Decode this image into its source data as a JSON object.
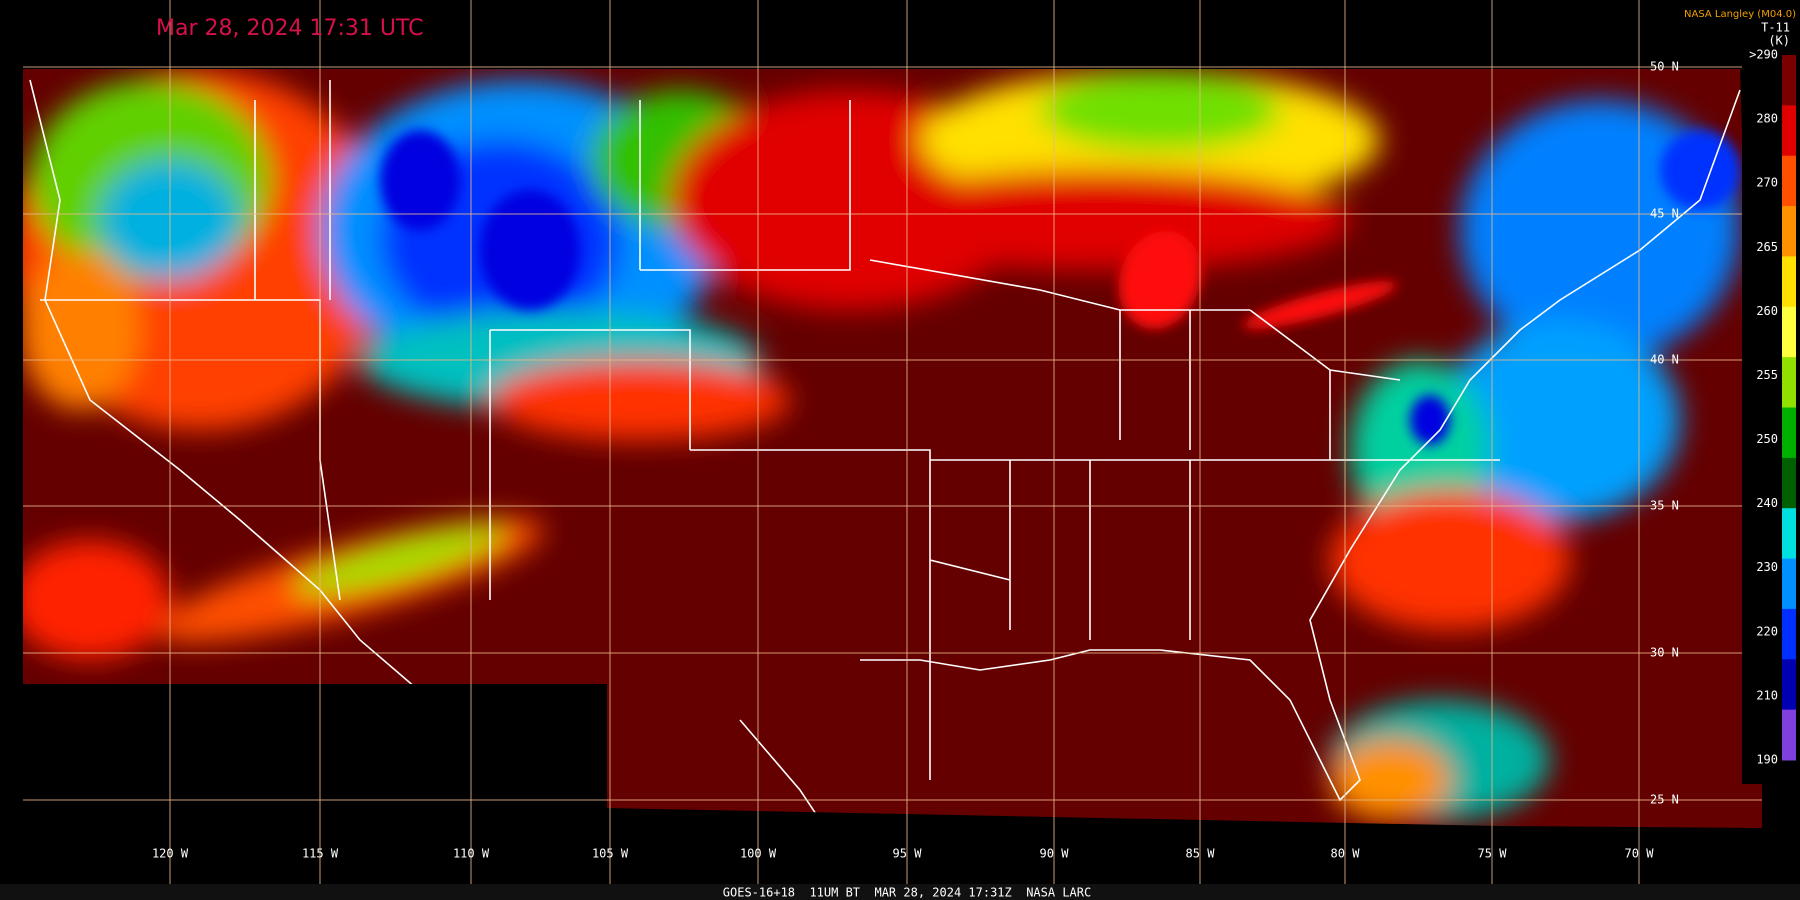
{
  "header": {
    "title": "Mar 28, 2024 17:31 UTC",
    "credit": "NASA Langley (M04.0)"
  },
  "legend": {
    "name": "T-11",
    "unit": "(K)",
    "ticks": [
      ">290",
      "280",
      "270",
      "265",
      "260",
      "255",
      "250",
      "240",
      "230",
      "220",
      "210",
      "190"
    ],
    "colors": [
      "#7a0000",
      "#e00000",
      "#ff5000",
      "#ff9000",
      "#ffe000",
      "#ffff40",
      "#90e000",
      "#00b000",
      "#006000",
      "#00e0e0",
      "#0090ff",
      "#0030ff",
      "#0000b0",
      "#8040e0"
    ]
  },
  "latitude_labels": [
    "50 N",
    "45 N",
    "40 N",
    "35 N",
    "30 N",
    "25 N"
  ],
  "longitude_labels": [
    "120 W",
    "115 W",
    "110 W",
    "105 W",
    "100 W",
    "95 W",
    "90 W",
    "85 W",
    "80 W",
    "75 W",
    "70 W"
  ],
  "footer": "GOES-16+18  11UM BT  MAR 28, 2024 17:31Z  NASA LARC"
}
